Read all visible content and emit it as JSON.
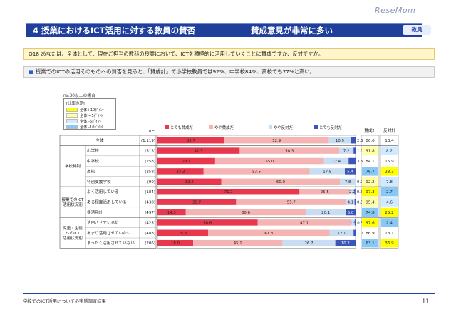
{
  "header": {
    "title": "4 授業におけるICT活用に対する教員の賛否",
    "subtitle": "賛成意見が非常に多い",
    "badge": "教員"
  },
  "logo": "ReseMom",
  "question": "Q18 あなたは、全体として、現在ご担当の教科の授業において、ICTを積極的に活用していくことに賛成ですか、反対ですか。",
  "summary": "授業でのICTの活用そのものへの賛否を見ると、「賛成計」で小学校教員では92%、中学校84%、高校でも77%と高い。",
  "summary_bullet": "■",
  "base_note": "n≥30以上の場合",
  "legend_box": {
    "title": "[比率の差]",
    "items": [
      {
        "label": "全体+10ﾎﾟｲﾝﾄ",
        "color": "#ffff00"
      },
      {
        "label": "全体 +5ﾎﾟｲﾝﾄ",
        "color": "#ffffa8"
      },
      {
        "label": "全体 -5ﾎﾟｲﾝﾄ",
        "color": "#d0ebff"
      },
      {
        "label": "全体 -10ﾎﾟｲﾝﾄ",
        "color": "#88c8f5"
      }
    ]
  },
  "footer": {
    "left": "学校でのICT活用についての実態調査結果",
    "page": "11"
  },
  "colors": {
    "very_agree": "#e8384e",
    "somewhat_agree": "#f5b4b4",
    "somewhat_disagree": "#c8dcf2",
    "very_disagree": "#3b55b8",
    "plus10": "#ffff00",
    "plus5": "#ffffa8",
    "minus5": "#d0ebff",
    "minus10": "#88c8f5"
  },
  "chart_data": {
    "type": "bar",
    "orientation": "horizontal-stacked-100",
    "n_header": "n=",
    "total_headers": [
      "賛成計",
      "反対計"
    ],
    "series": [
      {
        "name": "とても賛成だ",
        "color": "#e8384e"
      },
      {
        "name": "やや賛成だ",
        "color": "#f5b4b4"
      },
      {
        "name": "やや反対だ",
        "color": "#c8dcf2"
      },
      {
        "name": "とても反対だ",
        "color": "#3b55b8"
      }
    ],
    "groups": [
      {
        "label": "",
        "start": 0,
        "end": 0
      },
      {
        "label": "学校种别",
        "start": 1,
        "end": 4
      },
      {
        "label": "授業でのICT\n活用状況別",
        "start": 5,
        "end": 7
      },
      {
        "label": "児童・生徒\nへのICT\n活用状況別",
        "start": 8,
        "end": 10
      }
    ],
    "rows": [
      {
        "label": "全体",
        "n": "(1,119)",
        "values": [
          33.7,
          52.9,
          10.9,
          2.5
        ],
        "agree": "86.6",
        "disagree": "13.4",
        "agree_hl": "",
        "disagree_hl": ""
      },
      {
        "label": "小学校",
        "n": "(513)",
        "values": [
          41.5,
          50.3,
          7.2,
          1.0
        ],
        "agree": "91.8",
        "disagree": "8.2",
        "agree_hl": "plus5",
        "disagree_hl": "minus5"
      },
      {
        "label": "中学校",
        "n": "(258)",
        "values": [
          29.1,
          55.0,
          12.4,
          3.5
        ],
        "agree": "84.1",
        "disagree": "15.9",
        "agree_hl": "",
        "disagree_hl": ""
      },
      {
        "label": "高校",
        "n": "(258)",
        "values": [
          23.3,
          53.5,
          17.8,
          5.4
        ],
        "agree": "76.7",
        "disagree": "23.3",
        "agree_hl": "minus10",
        "disagree_hl": "plus10"
      },
      {
        "label": "特別支援学校",
        "n": "(90)",
        "values": [
          32.2,
          60.0,
          7.8,
          0.0
        ],
        "agree": "92.2",
        "disagree": "7.8",
        "agree_hl": "plus5",
        "disagree_hl": "minus5"
      },
      {
        "label": "よく活用している",
        "n": "(184)",
        "values": [
          71.7,
          25.5,
          2.2,
          0.5
        ],
        "agree": "97.3",
        "disagree": "2.7",
        "agree_hl": "plus10",
        "disagree_hl": "minus10"
      },
      {
        "label": "ある程度活用している",
        "n": "(438)",
        "values": [
          39.7,
          55.7,
          4.1,
          0.5
        ],
        "agree": "95.4",
        "disagree": "4.6",
        "agree_hl": "plus5",
        "disagree_hl": "minus5"
      },
      {
        "label": "非活用計",
        "n": "(497)",
        "values": [
          14.3,
          60.6,
          20.1,
          5.0
        ],
        "agree": "74.8",
        "disagree": "25.2",
        "agree_hl": "minus10",
        "disagree_hl": "plus10"
      },
      {
        "label": "活用させている計",
        "n": "(425)",
        "values": [
          50.6,
          47.1,
          1.9,
          0.5
        ],
        "agree": "97.6",
        "disagree": "2.4",
        "agree_hl": "plus10",
        "disagree_hl": "minus10"
      },
      {
        "label": "あまり活用させていない",
        "n": "(488)",
        "values": [
          25.6,
          61.3,
          12.1,
          1.0
        ],
        "agree": "86.9",
        "disagree": "13.1",
        "agree_hl": "",
        "disagree_hl": ""
      },
      {
        "label": "まったく活用させていない",
        "n": "(206)",
        "values": [
          18.0,
          45.1,
          26.7,
          10.2
        ],
        "agree": "63.1",
        "disagree": "36.9",
        "agree_hl": "minus10",
        "disagree_hl": "plus10"
      }
    ]
  }
}
